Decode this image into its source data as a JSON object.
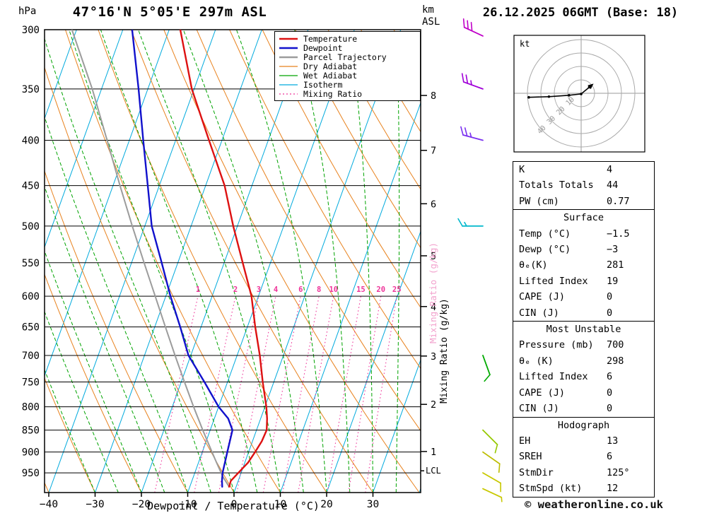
{
  "header": {
    "station_title": "47°16'N 5°05'E 297m ASL",
    "datetime_title": "26.12.2025 06GMT (Base: 18)",
    "pressure_unit": "hPa",
    "altitude_unit_line1": "km",
    "altitude_unit_line2": "ASL"
  },
  "legend": {
    "items": [
      {
        "label": "Temperature",
        "color": "#dd1111",
        "width": 2.6,
        "dash": ""
      },
      {
        "label": "Dewpoint",
        "color": "#1111cc",
        "width": 2.6,
        "dash": ""
      },
      {
        "label": "Parcel Trajectory",
        "color": "#9c9c9c",
        "width": 2.6,
        "dash": ""
      },
      {
        "label": "Dry Adiabat",
        "color": "#e8821e",
        "width": 1.3,
        "dash": ""
      },
      {
        "label": "Wet Adiabat",
        "color": "#00a300",
        "width": 1.3,
        "dash": ""
      },
      {
        "label": "Isotherm",
        "color": "#00aadd",
        "width": 1.3,
        "dash": ""
      },
      {
        "label": "Mixing Ratio",
        "color": "#ee3399",
        "width": 1.3,
        "dash": "2,3"
      }
    ]
  },
  "axes": {
    "x_label": "Dewpoint / Temperature (°C)",
    "mixing_ratio_label": "Mixing Ratio (g/kg)",
    "lcl_label": "LCL",
    "pressure_ticks": [
      300,
      350,
      400,
      450,
      500,
      550,
      600,
      650,
      700,
      750,
      800,
      850,
      900,
      950
    ],
    "temp_ticks": [
      -40,
      -30,
      -20,
      -10,
      0,
      10,
      20,
      30
    ],
    "km_ticks": [
      1,
      2,
      3,
      4,
      5,
      6,
      7,
      8
    ]
  },
  "chart_data": {
    "type": "skewt-logp",
    "title": "47°16'N 5°05'E 297m ASL",
    "pressure_range_hpa": [
      300,
      1000
    ],
    "temp_axis_range_c": [
      -41,
      40
    ],
    "isotherms_c": {
      "start": -80,
      "end": 40,
      "step": 10
    },
    "dry_adiabats_c": {
      "start": -40,
      "end": 130,
      "step": 10
    },
    "wet_adiabats_c": {
      "start": -30,
      "end": 35,
      "step": 5
    },
    "mixing_ratio_lines_gkg": [
      1,
      2,
      3,
      4,
      6,
      8,
      10,
      15,
      20,
      25
    ],
    "km_tick_pressures": [
      898.7,
      795.0,
      701.1,
      616.4,
      540.2,
      471.8,
      410.6,
      356.0
    ],
    "lcl_pressure_hpa": 945,
    "sounding": {
      "pressure_hpa": [
        985,
        970,
        950,
        925,
        900,
        875,
        850,
        825,
        800,
        750,
        700,
        650,
        600,
        550,
        500,
        450,
        400,
        350,
        300
      ],
      "temperature_c": [
        -1.5,
        -1.6,
        -0.6,
        0.7,
        1.4,
        2.0,
        2.2,
        1.4,
        0.3,
        -2.4,
        -5.1,
        -8.3,
        -11.5,
        -16.0,
        -20.9,
        -25.9,
        -32.8,
        -40.5,
        -47.6
      ],
      "dewpoint_c": [
        -3,
        -3.5,
        -4,
        -4.3,
        -4.6,
        -4.9,
        -5.2,
        -7,
        -10,
        -15,
        -20.5,
        -24.5,
        -29,
        -33.5,
        -38.5,
        -42.5,
        -47,
        -52,
        -58
      ]
    },
    "parcel": {
      "pressure_hpa": [
        985,
        960,
        925,
        900,
        850,
        800,
        750,
        700,
        650,
        600,
        550,
        500,
        450,
        400,
        350,
        300
      ],
      "temperature_c": [
        -1.5,
        -3.6,
        -6.1,
        -7.9,
        -11.6,
        -15.4,
        -19.3,
        -23.4,
        -27.7,
        -32.3,
        -37.3,
        -42.7,
        -48.5,
        -54.8,
        -62.0,
        -71.0
      ]
    },
    "wind_barbs": [
      {
        "pressure_hpa": 305,
        "dir_deg": 295,
        "speed_kt": 30,
        "color": "#c000c8"
      },
      {
        "pressure_hpa": 350,
        "dir_deg": 290,
        "speed_kt": 25,
        "color": "#a000d8"
      },
      {
        "pressure_hpa": 400,
        "dir_deg": 285,
        "speed_kt": 25,
        "color": "#7a30f0"
      },
      {
        "pressure_hpa": 500,
        "dir_deg": 270,
        "speed_kt": 15,
        "color": "#00b8cc"
      },
      {
        "pressure_hpa": 700,
        "dir_deg": 160,
        "speed_kt": 10,
        "color": "#00aa00"
      },
      {
        "pressure_hpa": 850,
        "dir_deg": 135,
        "speed_kt": 10,
        "color": "#96c800"
      },
      {
        "pressure_hpa": 900,
        "dir_deg": 125,
        "speed_kt": 10,
        "color": "#bcbc00"
      },
      {
        "pressure_hpa": 950,
        "dir_deg": 120,
        "speed_kt": 12,
        "color": "#c8c800"
      },
      {
        "pressure_hpa": 990,
        "dir_deg": 115,
        "speed_kt": 8,
        "color": "#c8c800"
      }
    ],
    "hodograph": {
      "unit_label": "kt",
      "rings_kt": [
        10,
        20,
        30,
        40
      ],
      "trace_uv_kt": [
        [
          -39,
          -3
        ],
        [
          -24,
          -2.5
        ],
        [
          -9,
          -1.5
        ],
        [
          0,
          -0.5
        ],
        [
          6,
          4.5
        ]
      ]
    },
    "colors": {
      "temperature": "#dd1111",
      "dewpoint": "#1111cc",
      "parcel": "#9c9c9c",
      "dry_adiabat": "#e8821e",
      "wet_adiabat": "#00a300",
      "isotherm": "#00aadd",
      "mixing_ratio": "#ee3399",
      "grid": "#000000"
    }
  },
  "info_table": {
    "sections": [
      {
        "title": null,
        "rows": [
          {
            "label": "K",
            "value": "4"
          },
          {
            "label": "Totals Totals",
            "value": "44"
          },
          {
            "label": "PW (cm)",
            "value": "0.77"
          }
        ]
      },
      {
        "title": "Surface",
        "rows": [
          {
            "label": "Temp (°C)",
            "value": "−1.5"
          },
          {
            "label": "Dewp (°C)",
            "value": "−3"
          },
          {
            "label": "θₑ(K)",
            "value": "281"
          },
          {
            "label": "Lifted Index",
            "value": "19"
          },
          {
            "label": "CAPE (J)",
            "value": "0"
          },
          {
            "label": "CIN (J)",
            "value": "0"
          }
        ]
      },
      {
        "title": "Most Unstable",
        "rows": [
          {
            "label": "Pressure (mb)",
            "value": "700"
          },
          {
            "label": "θₑ (K)",
            "value": "298"
          },
          {
            "label": "Lifted Index",
            "value": "6"
          },
          {
            "label": "CAPE (J)",
            "value": "0"
          },
          {
            "label": "CIN (J)",
            "value": "0"
          }
        ]
      },
      {
        "title": "Hodograph",
        "rows": [
          {
            "label": "EH",
            "value": "13"
          },
          {
            "label": "SREH",
            "value": "6"
          },
          {
            "label": "StmDir",
            "value": "125°"
          },
          {
            "label": "StmSpd (kt)",
            "value": "12"
          }
        ]
      }
    ]
  },
  "footer": {
    "copyright": "© weatheronline.co.uk"
  }
}
